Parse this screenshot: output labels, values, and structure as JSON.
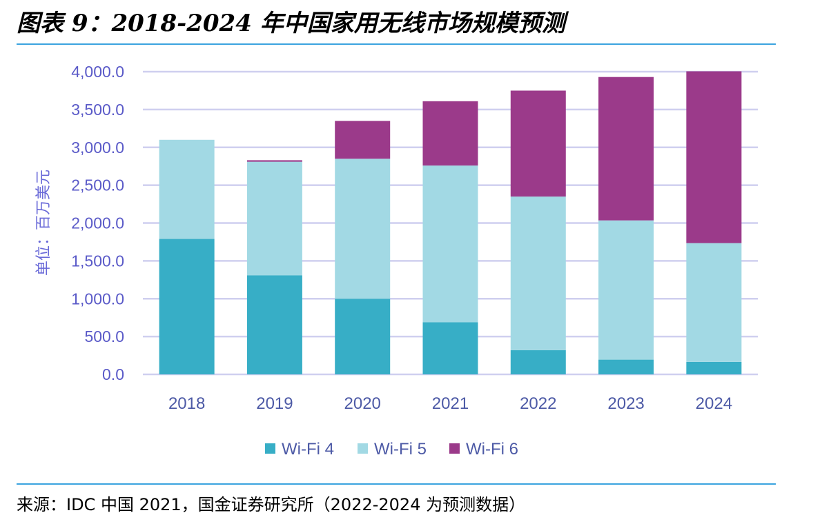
{
  "header": {
    "title": "图表 9：2018-2024 年中国家用无线市场规模预测"
  },
  "footer": {
    "source": "来源：IDC 中国 2021，国金证券研究所（2022-2024 为预测数据）"
  },
  "colors": {
    "rule": "#3aa3df",
    "wifi4": "#37aec6",
    "wifi5": "#a2d9e4",
    "wifi6": "#9b3a8a",
    "grid": "#cfcfef"
  },
  "chart_data": {
    "type": "bar",
    "stacked": true,
    "ylabel": "单位：百万美元",
    "xlabel": "",
    "ylim": [
      0,
      4000
    ],
    "yticks": [
      "0.0",
      "500.0",
      "1,000.0",
      "1,500.0",
      "2,000.0",
      "2,500.0",
      "3,000.0",
      "3,500.0",
      "4,000.0"
    ],
    "categories": [
      "2018",
      "2019",
      "2020",
      "2021",
      "2022",
      "2023",
      "2024"
    ],
    "series": [
      {
        "name": "Wi-Fi 4",
        "color": "#37aec6",
        "values": [
          1790,
          1310,
          1000,
          690,
          320,
          195,
          165
        ]
      },
      {
        "name": "Wi-Fi 5",
        "color": "#a2d9e4",
        "values": [
          1310,
          1500,
          1850,
          2070,
          2030,
          1840,
          1570
        ]
      },
      {
        "name": "Wi-Fi 6",
        "color": "#9b3a8a",
        "values": [
          0,
          20,
          500,
          850,
          1400,
          1895,
          2270
        ]
      }
    ],
    "grid": true,
    "legend_position": "bottom"
  }
}
